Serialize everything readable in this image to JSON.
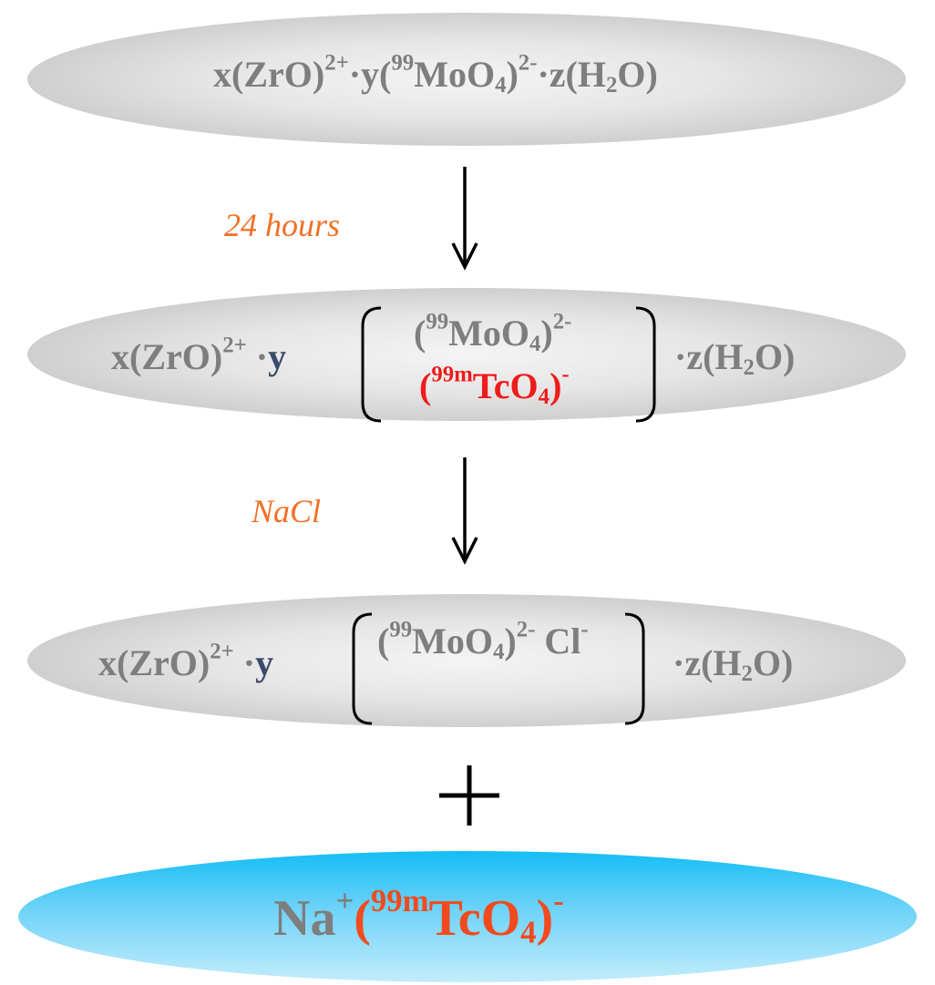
{
  "step1": {
    "formula": {
      "coef_x": "x(ZrO)",
      "zr_charge": "2+",
      "dot_y": "·y(",
      "mo_mass": "99",
      "mo_formula": "MoO",
      "o_sub": "4",
      "mo_close": ")",
      "mo_charge": "2-",
      "dot_z": "·z(H",
      "h_sub": "2",
      "tail": "O)"
    }
  },
  "step1_label": "24 hours",
  "step2": {
    "left": {
      "coef": "x(ZrO)",
      "charge": "2+",
      "dot": " ·",
      "y": "y"
    },
    "mo": {
      "open": "(",
      "mass": "99",
      "formula": "MoO",
      "sub": "4",
      "close": ")",
      "charge": "2-"
    },
    "tc": {
      "open": "(",
      "mass": "99m",
      "formula": "TcO",
      "sub": "4",
      "close": ")",
      "charge": "-"
    },
    "right": {
      "dot": "·z(H",
      "sub": "2",
      "tail": "O)"
    }
  },
  "step2_label": "NaCl",
  "step3": {
    "left": {
      "coef": "x(ZrO)",
      "charge": "2+",
      "dot": " ·",
      "y": "y"
    },
    "mo": {
      "open": "(",
      "mass": "99",
      "formula": "MoO",
      "sub": "4",
      "close": ")",
      "charge": "2-"
    },
    "cl": {
      "formula": " Cl",
      "charge": "-"
    },
    "right": {
      "dot": "·z(H",
      "sub": "2",
      "tail": "O)"
    }
  },
  "plus_sign": "+",
  "product": {
    "na": "Na",
    "na_charge": "+",
    "open": "(",
    "mass": "99m",
    "formula": "TcO",
    "sub": "4",
    "close": ")",
    "charge": "-"
  }
}
